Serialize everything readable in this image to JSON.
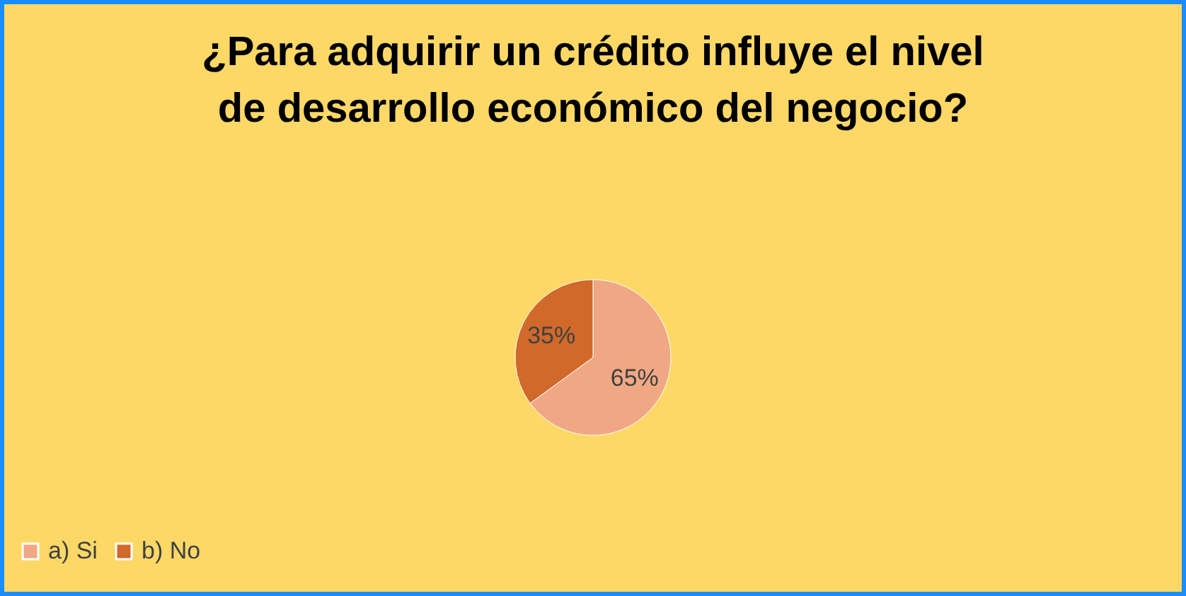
{
  "chart_data": {
    "type": "pie",
    "title": "¿Para adquirir un crédito influye el nivel de desarrollo económico del negocio?",
    "categories": [
      "a) Si",
      "b) No"
    ],
    "values": [
      65,
      35
    ],
    "colors": [
      "#f0a884",
      "#d0692a"
    ],
    "value_labels": [
      "65%",
      "35%"
    ],
    "legend": "bottom"
  }
}
